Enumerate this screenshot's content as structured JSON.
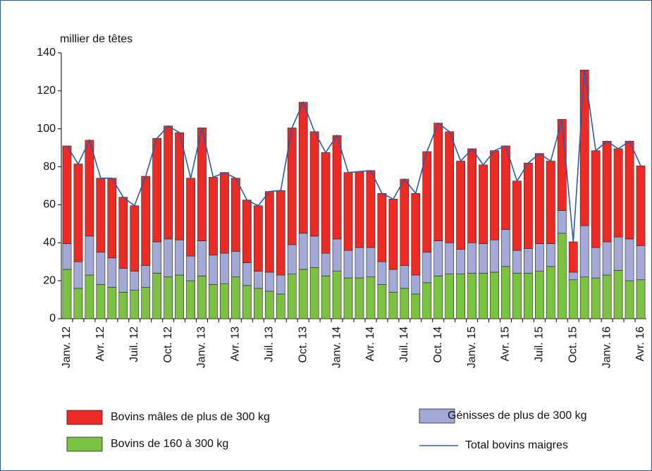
{
  "chart_data": {
    "type": "bar",
    "stacked": true,
    "y_label": "millier de têtes",
    "categories": [
      "Janv. 12",
      null,
      null,
      "Avr. 12",
      null,
      null,
      "Juil. 12",
      null,
      null,
      "Oct. 12",
      null,
      null,
      "Janv. 13",
      null,
      null,
      "Avr. 13",
      null,
      null,
      "Juil. 13",
      null,
      null,
      "Oct. 13",
      null,
      null,
      "Janv. 14",
      null,
      null,
      "Avr. 14",
      null,
      null,
      "Juil. 14",
      null,
      null,
      "Oct. 14",
      null,
      null,
      "Janv. 15",
      null,
      null,
      "Avr. 15",
      null,
      null,
      "Juil. 15",
      null,
      null,
      "Oct. 15",
      null,
      null,
      "Janv. 16",
      null,
      null,
      "Avr. 16"
    ],
    "series": [
      {
        "name": "Bovins de 160 à 300 kg",
        "type": "bar",
        "color": "#7cc242",
        "values": [
          26,
          16,
          23,
          18,
          16.5,
          14,
          15,
          16.5,
          24,
          22,
          23,
          20,
          22.5,
          18,
          18.5,
          22,
          17.5,
          16,
          14.5,
          13,
          23.5,
          26,
          27,
          22.5,
          25,
          21.5,
          21.5,
          22,
          18,
          14,
          16,
          13,
          19,
          22.5,
          23.5,
          23.5,
          24,
          24,
          24.5,
          27.5,
          24,
          24,
          25,
          27.5,
          45,
          20.5,
          22,
          21.5,
          23,
          25.5,
          20,
          20.5
        ]
      },
      {
        "name": "Génisses de plus de 300 kg",
        "type": "bar",
        "color": "#a3a9d7",
        "values": [
          13.5,
          14,
          20.5,
          17,
          15.5,
          12.5,
          10,
          11.5,
          16.5,
          20,
          18.5,
          13,
          18.5,
          15.5,
          16,
          13.5,
          12,
          9,
          10,
          10,
          15.5,
          19,
          16.5,
          12,
          17,
          14.5,
          16,
          15.5,
          12,
          12,
          12,
          10,
          16,
          18.5,
          16.5,
          13,
          16,
          15.5,
          17,
          19.5,
          12,
          13,
          14.5,
          12,
          12,
          4,
          27,
          16,
          17.5,
          17.5,
          22,
          18
        ]
      },
      {
        "name": "Bovins mâles de plus de 300 kg",
        "type": "bar",
        "color": "#ee2a24",
        "values": [
          51.5,
          51.5,
          50.5,
          39,
          42,
          37.5,
          34.5,
          47,
          54.5,
          59.5,
          56.5,
          41,
          59.5,
          41,
          42.5,
          38.5,
          33,
          34.5,
          42.5,
          44.5,
          61.5,
          69,
          55,
          53,
          54.5,
          41,
          40,
          40.5,
          36,
          37,
          45.5,
          43,
          53,
          62,
          58.5,
          46.5,
          49.5,
          41.5,
          47,
          44,
          36.5,
          45,
          47.5,
          43.5,
          48,
          16,
          82,
          51,
          53,
          46.5,
          51.5,
          42
        ]
      },
      {
        "name": "Total bovins maigres",
        "type": "line",
        "color": "#2b5ba8",
        "values": [
          91,
          81.5,
          94,
          74,
          74,
          64,
          59.5,
          75,
          95,
          101.5,
          98,
          74,
          100.5,
          74.5,
          77,
          74,
          62.5,
          59.5,
          67,
          67.5,
          100.5,
          114,
          98.5,
          87.5,
          96.5,
          77,
          77.5,
          78,
          66,
          63,
          73.5,
          66,
          88,
          103,
          98.5,
          83,
          89.5,
          81,
          88.5,
          91,
          72.5,
          82,
          87,
          83,
          105,
          40.5,
          131,
          88.5,
          93.5,
          89.5,
          93.5,
          80.5
        ]
      }
    ],
    "ylim": [
      0,
      140
    ],
    "yticks": [
      0,
      20,
      40,
      60,
      80,
      100,
      120,
      140
    ],
    "grid": false
  }
}
